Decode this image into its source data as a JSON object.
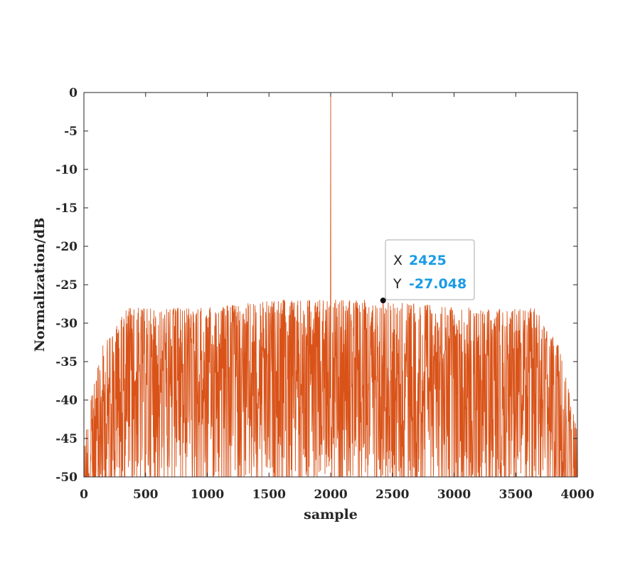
{
  "chart_data": {
    "type": "line",
    "title": "",
    "xlabel": "sample",
    "ylabel": "Normalization/dB",
    "xlim": [
      0,
      4000
    ],
    "ylim": [
      -50,
      0
    ],
    "x_ticks": [
      0,
      500,
      1000,
      1500,
      2000,
      2500,
      3000,
      3500,
      4000
    ],
    "y_ticks": [
      0,
      -5,
      -10,
      -15,
      -20,
      -25,
      -30,
      -35,
      -40,
      -45,
      -50
    ],
    "x_tick_labels": [
      "0",
      "500",
      "1000",
      "1500",
      "2000",
      "2500",
      "3000",
      "3500",
      "4000"
    ],
    "y_tick_labels": [
      "0",
      "-5",
      "-10",
      "-15",
      "-20",
      "-25",
      "-30",
      "-35",
      "-40",
      "-45",
      "-50"
    ],
    "grid": false,
    "series": [
      {
        "color": "#d95319",
        "n_samples": 4000,
        "peak": {
          "x": 2000,
          "y": 0
        },
        "envelope": [
          {
            "x": 0,
            "y": -44
          },
          {
            "x": 150,
            "y": -33
          },
          {
            "x": 350,
            "y": -28
          },
          {
            "x": 1000,
            "y": -28
          },
          {
            "x": 1600,
            "y": -27
          },
          {
            "x": 2400,
            "y": -27
          },
          {
            "x": 3000,
            "y": -28
          },
          {
            "x": 3650,
            "y": -28
          },
          {
            "x": 3850,
            "y": -33
          },
          {
            "x": 4000,
            "y": -44
          }
        ],
        "floor": -50
      }
    ],
    "datatip": {
      "x": 2425,
      "y": -27.048,
      "x_key": "X",
      "y_key": "Y",
      "x_text": "2425",
      "y_text": "-27.048"
    }
  },
  "colors": {
    "line": "#d95319",
    "axis": "#262626",
    "datatip_value": "#1a9be6"
  }
}
